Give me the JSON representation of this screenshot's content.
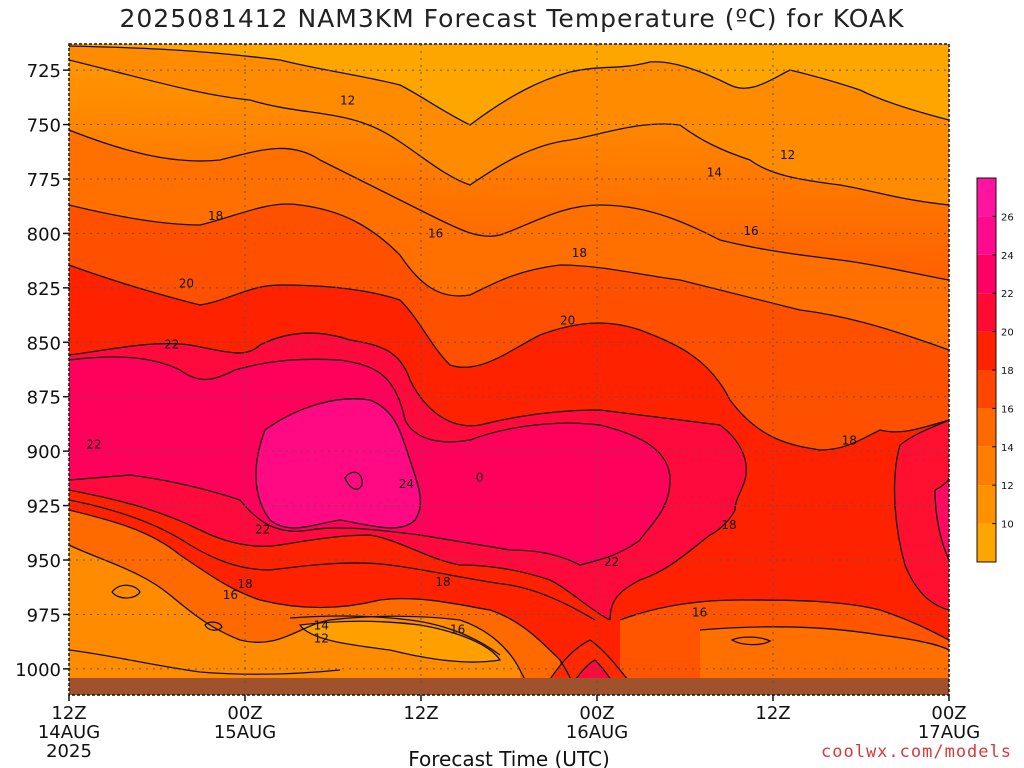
{
  "title": "2025081412 NAM3KM Forecast Temperature (ºC) for KOAK",
  "watermark": "coolwx.com/models",
  "chart_data": {
    "type": "heatmap",
    "title": "2025081412 NAM3KM Forecast Temperature (ºC) for KOAK",
    "xlabel": "Forecast Time (UTC)",
    "ylabel": "",
    "x_ticks": [
      {
        "hours": 0,
        "lines": [
          "12Z",
          "14AUG",
          "2025"
        ]
      },
      {
        "hours": 12,
        "lines": [
          "00Z",
          "15AUG"
        ]
      },
      {
        "hours": 24,
        "lines": [
          "12Z"
        ]
      },
      {
        "hours": 36,
        "lines": [
          "00Z",
          "16AUG"
        ]
      },
      {
        "hours": 48,
        "lines": [
          "12Z"
        ]
      },
      {
        "hours": 60,
        "lines": [
          "00Z",
          "17AUG"
        ]
      }
    ],
    "xlim_hours": [
      0,
      60
    ],
    "y_ticks": [
      725,
      750,
      775,
      800,
      825,
      850,
      875,
      900,
      925,
      950,
      975,
      1000
    ],
    "ylim": [
      1012,
      713
    ],
    "y_inverted": true,
    "grid": true,
    "colorbar": {
      "ticks": [
        10,
        12,
        14,
        16,
        18,
        20,
        22,
        24,
        26
      ],
      "range": [
        8,
        28
      ],
      "colors": [
        "#ffa500",
        "#ff9100",
        "#ff7d00",
        "#ff6a00",
        "#ff4600",
        "#ff2200",
        "#ff0a32",
        "#ff0064",
        "#ff0a8c",
        "#ff14a0"
      ]
    },
    "contour_labels": [
      {
        "text": "12",
        "hours": 19.0,
        "pressure": 739
      },
      {
        "text": "12",
        "hours": 49.0,
        "pressure": 764
      },
      {
        "text": "14",
        "hours": 44.0,
        "pressure": 772
      },
      {
        "text": "18",
        "hours": 10.0,
        "pressure": 792
      },
      {
        "text": "16",
        "hours": 25.0,
        "pressure": 800
      },
      {
        "text": "16",
        "hours": 46.5,
        "pressure": 799
      },
      {
        "text": "18",
        "hours": 34.8,
        "pressure": 809
      },
      {
        "text": "20",
        "hours": 8.0,
        "pressure": 823
      },
      {
        "text": "20",
        "hours": 34.0,
        "pressure": 840
      },
      {
        "text": "22",
        "hours": 7.0,
        "pressure": 851
      },
      {
        "text": "22",
        "hours": 1.7,
        "pressure": 897
      },
      {
        "text": "18",
        "hours": 53.2,
        "pressure": 895
      },
      {
        "text": "24",
        "hours": 23.0,
        "pressure": 915
      },
      {
        "text": "0",
        "hours": 28.0,
        "pressure": 912
      },
      {
        "text": "18",
        "hours": 45.0,
        "pressure": 934
      },
      {
        "text": "22",
        "hours": 13.2,
        "pressure": 936
      },
      {
        "text": "22",
        "hours": 37.0,
        "pressure": 951
      },
      {
        "text": "18",
        "hours": 12.0,
        "pressure": 961
      },
      {
        "text": "18",
        "hours": 25.5,
        "pressure": 960
      },
      {
        "text": "16",
        "hours": 11.0,
        "pressure": 966
      },
      {
        "text": "16",
        "hours": 43.0,
        "pressure": 974
      },
      {
        "text": "16",
        "hours": 26.5,
        "pressure": 982
      },
      {
        "text": "14",
        "hours": 17.2,
        "pressure": 980
      },
      {
        "text": "12",
        "hours": 17.2,
        "pressure": 986
      }
    ]
  }
}
